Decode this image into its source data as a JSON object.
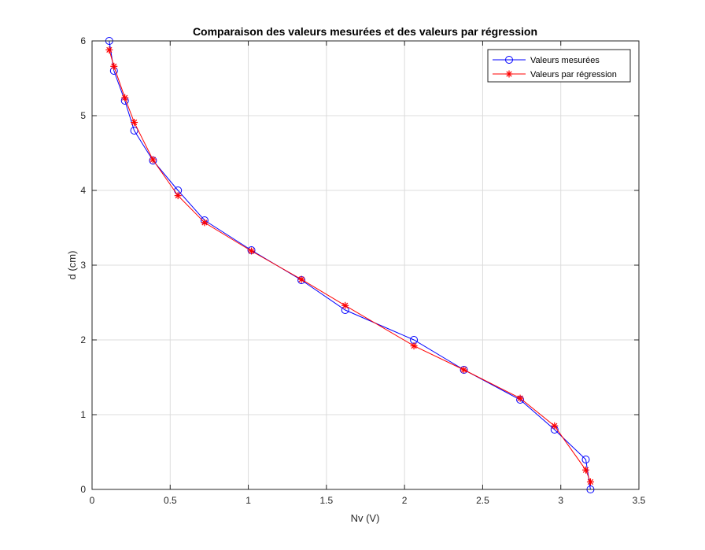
{
  "chart_data": {
    "type": "line",
    "title": "Comparaison des valeurs mesurées et des valeurs par régression",
    "xlabel": "Nv (V)",
    "ylabel": "d (cm)",
    "xlim": [
      0,
      3.5
    ],
    "ylim": [
      0,
      6
    ],
    "xticks": [
      0,
      0.5,
      1,
      1.5,
      2,
      2.5,
      3,
      3.5
    ],
    "yticks": [
      0,
      1,
      2,
      3,
      4,
      5,
      6
    ],
    "xtick_labels": [
      "0",
      "0.5",
      "1",
      "1.5",
      "2",
      "2.5",
      "3",
      "3.5"
    ],
    "ytick_labels": [
      "0",
      "1",
      "2",
      "3",
      "4",
      "5",
      "6"
    ],
    "grid": true,
    "legend_position": "top-right",
    "series": [
      {
        "name": "Valeurs mesurées",
        "color": "#0000ff",
        "marker": "circle",
        "x": [
          0.11,
          0.14,
          0.21,
          0.27,
          0.39,
          0.55,
          0.72,
          1.02,
          1.34,
          1.62,
          2.06,
          2.38,
          2.74,
          2.96,
          3.16,
          3.19
        ],
        "y": [
          6.0,
          5.6,
          5.2,
          4.8,
          4.4,
          4.0,
          3.6,
          3.2,
          2.8,
          2.4,
          2.0,
          1.6,
          1.2,
          0.8,
          0.4,
          0.0
        ]
      },
      {
        "name": "Valeurs par régression",
        "color": "#ff0000",
        "marker": "asterisk",
        "x": [
          0.11,
          0.14,
          0.21,
          0.27,
          0.39,
          0.55,
          0.72,
          1.02,
          1.34,
          1.62,
          2.06,
          2.38,
          2.74,
          2.96,
          3.16,
          3.19
        ],
        "y": [
          5.88,
          5.66,
          5.24,
          4.91,
          4.41,
          3.93,
          3.57,
          3.19,
          2.81,
          2.46,
          1.92,
          1.6,
          1.22,
          0.85,
          0.26,
          0.1
        ]
      }
    ]
  }
}
